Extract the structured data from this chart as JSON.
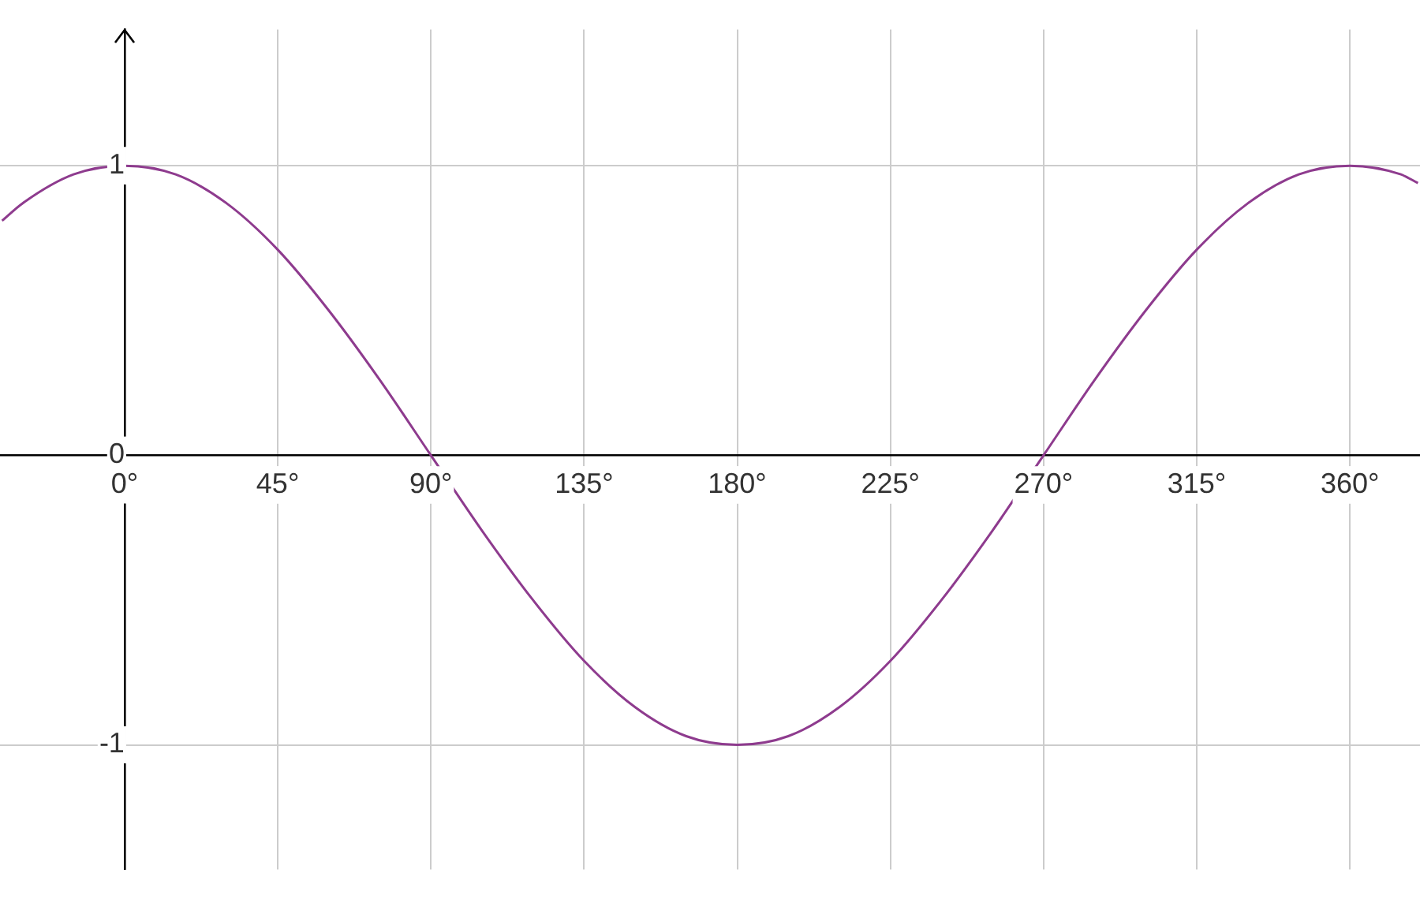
{
  "chart_data": {
    "type": "line",
    "xlim": [
      -36.6,
      380.6
    ],
    "ylim": [
      -1.43,
      1.47
    ],
    "xticks": [
      {
        "value": 0,
        "label": "0°"
      },
      {
        "value": 45,
        "label": "45°"
      },
      {
        "value": 90,
        "label": "90°"
      },
      {
        "value": 135,
        "label": "135°"
      },
      {
        "value": 180,
        "label": "180°"
      },
      {
        "value": 225,
        "label": "225°"
      },
      {
        "value": 270,
        "label": "270°"
      },
      {
        "value": 315,
        "label": "315°"
      },
      {
        "value": 360,
        "label": "360°"
      }
    ],
    "yticks": [
      -1,
      0,
      1
    ],
    "grid": true,
    "marker": "none",
    "x": [
      -36,
      -30,
      -15,
      0,
      15,
      30,
      45,
      60,
      75,
      90,
      105,
      120,
      135,
      150,
      165,
      180,
      195,
      210,
      225,
      240,
      255,
      270,
      285,
      300,
      315,
      330,
      345,
      360,
      375,
      380
    ],
    "series": [
      {
        "color": "#8e3b8e",
        "values": [
          0.81,
          0.87,
          0.97,
          1,
          0.97,
          0.87,
          0.71,
          0.5,
          0.26,
          0,
          -0.26,
          -0.5,
          -0.71,
          -0.87,
          -0.97,
          -1,
          -0.97,
          -0.87,
          -0.71,
          -0.5,
          -0.26,
          0,
          0.26,
          0.5,
          0.71,
          0.87,
          0.97,
          1,
          0.97,
          0.94
        ]
      }
    ]
  }
}
